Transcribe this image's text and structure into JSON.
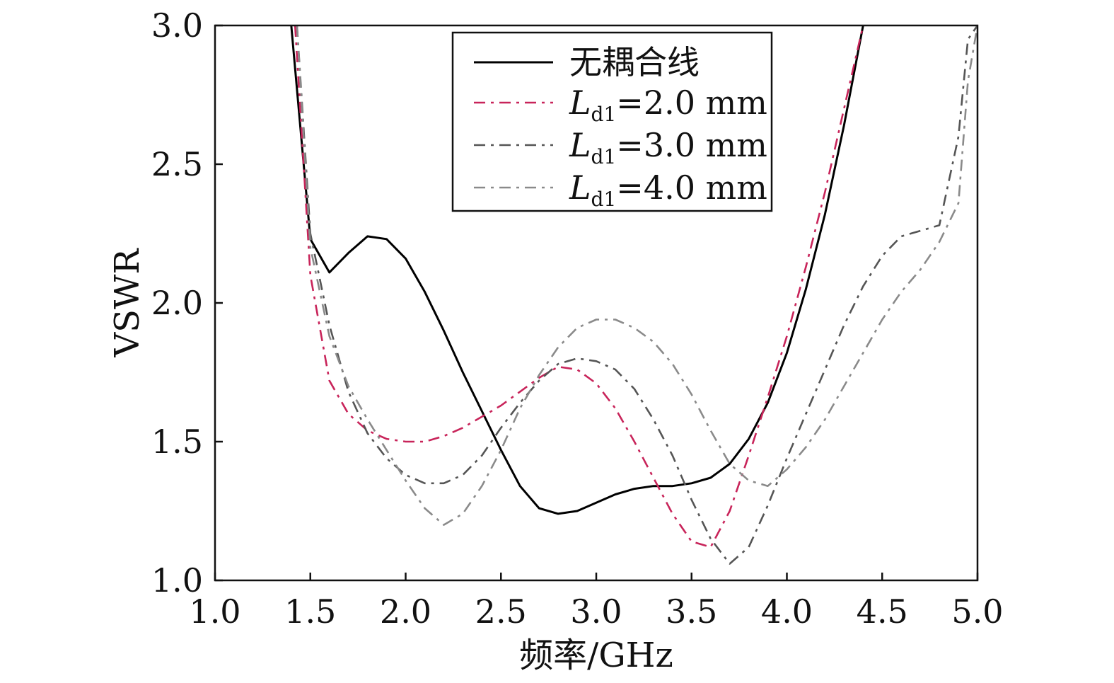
{
  "chart_data": {
    "type": "line",
    "xlabel": "频率/GHz",
    "ylabel": "VSWR",
    "xlim": [
      1.0,
      5.0
    ],
    "ylim": [
      1.0,
      3.0
    ],
    "x_ticks": [
      "1.0",
      "1.5",
      "2.0",
      "2.5",
      "3.0",
      "3.5",
      "4.0",
      "4.5",
      "5.0"
    ],
    "y_ticks": [
      "1.0",
      "1.5",
      "2.0",
      "2.5",
      "3.0"
    ],
    "grid": false,
    "legend_position": "top-center",
    "series": [
      {
        "name": "无耦合线",
        "legend_parts": {
          "main": "无耦合线",
          "sub": "",
          "rest": ""
        },
        "color": "#000000",
        "style": "solid",
        "x": [
          1.4,
          1.5,
          1.6,
          1.7,
          1.8,
          1.9,
          2.0,
          2.1,
          2.2,
          2.3,
          2.4,
          2.5,
          2.6,
          2.7,
          2.8,
          2.9,
          3.0,
          3.1,
          3.2,
          3.3,
          3.4,
          3.5,
          3.6,
          3.7,
          3.8,
          3.9,
          4.0,
          4.1,
          4.2,
          4.3,
          4.4
        ],
        "y": [
          3.0,
          2.23,
          2.11,
          2.18,
          2.24,
          2.23,
          2.16,
          2.04,
          1.9,
          1.75,
          1.61,
          1.47,
          1.34,
          1.26,
          1.24,
          1.25,
          1.28,
          1.31,
          1.33,
          1.34,
          1.34,
          1.35,
          1.37,
          1.42,
          1.51,
          1.64,
          1.82,
          2.05,
          2.32,
          2.64,
          3.0
        ]
      },
      {
        "name": "Ld1=2.0 mm",
        "legend_parts": {
          "main": "L",
          "sub": "d1",
          "rest": "=2.0 mm"
        },
        "color": "#c8245a",
        "style": "dashdot",
        "x": [
          1.42,
          1.5,
          1.6,
          1.7,
          1.8,
          1.9,
          2.0,
          2.1,
          2.2,
          2.3,
          2.4,
          2.5,
          2.6,
          2.7,
          2.8,
          2.9,
          3.0,
          3.1,
          3.2,
          3.3,
          3.4,
          3.5,
          3.6,
          3.7,
          3.8,
          3.9,
          4.0,
          4.1,
          4.2,
          4.3,
          4.4
        ],
        "y": [
          3.0,
          2.1,
          1.72,
          1.6,
          1.54,
          1.51,
          1.5,
          1.5,
          1.52,
          1.55,
          1.59,
          1.63,
          1.68,
          1.73,
          1.77,
          1.76,
          1.71,
          1.62,
          1.5,
          1.37,
          1.24,
          1.14,
          1.12,
          1.25,
          1.45,
          1.66,
          1.88,
          2.13,
          2.4,
          2.7,
          3.0
        ]
      },
      {
        "name": "Ld1=3.0 mm",
        "legend_parts": {
          "main": "L",
          "sub": "d1",
          "rest": "=3.0 mm"
        },
        "color": "#555555",
        "style": "dashdot",
        "x": [
          1.43,
          1.5,
          1.6,
          1.7,
          1.8,
          1.9,
          2.0,
          2.1,
          2.2,
          2.3,
          2.4,
          2.5,
          2.6,
          2.7,
          2.8,
          2.9,
          3.0,
          3.1,
          3.2,
          3.3,
          3.4,
          3.5,
          3.6,
          3.7,
          3.8,
          3.9,
          4.0,
          4.1,
          4.2,
          4.3,
          4.4,
          4.5,
          4.6,
          4.7,
          4.8,
          4.9,
          4.95,
          5.0
        ],
        "y": [
          3.0,
          2.25,
          1.92,
          1.68,
          1.53,
          1.44,
          1.38,
          1.35,
          1.35,
          1.38,
          1.45,
          1.55,
          1.64,
          1.72,
          1.78,
          1.8,
          1.79,
          1.76,
          1.69,
          1.58,
          1.45,
          1.29,
          1.15,
          1.06,
          1.12,
          1.27,
          1.44,
          1.6,
          1.76,
          1.92,
          2.06,
          2.17,
          2.24,
          2.26,
          2.28,
          2.6,
          2.95,
          3.0
        ]
      },
      {
        "name": "Ld1=4.0 mm",
        "legend_parts": {
          "main": "L",
          "sub": "d1",
          "rest": "=4.0 mm"
        },
        "color": "#8a8a8a",
        "style": "dashdot",
        "x": [
          1.43,
          1.5,
          1.6,
          1.7,
          1.8,
          1.9,
          2.0,
          2.1,
          2.2,
          2.3,
          2.4,
          2.5,
          2.6,
          2.7,
          2.8,
          2.9,
          3.0,
          3.1,
          3.2,
          3.3,
          3.4,
          3.5,
          3.6,
          3.7,
          3.8,
          3.9,
          4.0,
          4.1,
          4.2,
          4.3,
          4.4,
          4.5,
          4.6,
          4.7,
          4.8,
          4.9,
          4.95,
          5.0
        ],
        "y": [
          3.0,
          2.2,
          1.88,
          1.7,
          1.58,
          1.47,
          1.36,
          1.26,
          1.2,
          1.24,
          1.34,
          1.47,
          1.62,
          1.74,
          1.84,
          1.91,
          1.94,
          1.94,
          1.91,
          1.86,
          1.78,
          1.67,
          1.54,
          1.42,
          1.36,
          1.34,
          1.4,
          1.48,
          1.58,
          1.7,
          1.82,
          1.94,
          2.04,
          2.12,
          2.22,
          2.36,
          2.8,
          3.0
        ]
      }
    ]
  }
}
